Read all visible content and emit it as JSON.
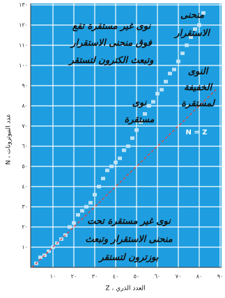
{
  "chart_data": {
    "type": "scatter",
    "x_label": "العدد الذري ، Z",
    "y_label": "عدد النيوترونات ، N",
    "xlim": [
      0,
      90
    ],
    "ylim": [
      0,
      130
    ],
    "xticks": [
      {
        "value": 10,
        "label": "١٠"
      },
      {
        "value": 20,
        "label": "٢٠"
      },
      {
        "value": 30,
        "label": "٣٠"
      },
      {
        "value": 40,
        "label": "٤٠"
      },
      {
        "value": 50,
        "label": "٥٠"
      },
      {
        "value": 60,
        "label": "٦٠"
      },
      {
        "value": 70,
        "label": "٧٠"
      },
      {
        "value": 80,
        "label": "٨٠"
      },
      {
        "value": 90,
        "label": "٩٠"
      }
    ],
    "yticks": [
      {
        "value": 10,
        "label": "١٠"
      },
      {
        "value": 20,
        "label": "٢٠"
      },
      {
        "value": 30,
        "label": "٣٠"
      },
      {
        "value": 40,
        "label": "٤٠"
      },
      {
        "value": 50,
        "label": "٥٠"
      },
      {
        "value": 60,
        "label": "٦٠"
      },
      {
        "value": 70,
        "label": "٧٠"
      },
      {
        "value": 80,
        "label": "٨٠"
      },
      {
        "value": 90,
        "label": "٩٠"
      },
      {
        "value": 100,
        "label": "١٠٠"
      },
      {
        "value": 110,
        "label": "١١٠"
      },
      {
        "value": 120,
        "label": "١٢٠"
      },
      {
        "value": 130,
        "label": "١٣٠"
      }
    ],
    "grid": true,
    "background": "#1e9ee0",
    "series": [
      {
        "color": "#cde9f8",
        "x": [
          2,
          4,
          6,
          8,
          10,
          12,
          14,
          16,
          18,
          20,
          22,
          24,
          26,
          28,
          30,
          32,
          34,
          36,
          38,
          40,
          42,
          44,
          46,
          48,
          50,
          52,
          54,
          56,
          58,
          60,
          62,
          64,
          66,
          68,
          70,
          72,
          74,
          76,
          78,
          80,
          82
        ],
        "values": [
          2,
          5,
          6,
          8,
          10,
          12,
          14,
          16,
          20,
          22,
          26,
          28,
          30,
          32,
          36,
          40,
          44,
          48,
          50,
          52,
          54,
          58,
          60,
          64,
          68,
          72,
          76,
          80,
          82,
          86,
          88,
          92,
          96,
          98,
          102,
          106,
          110,
          114,
          118,
          120,
          126
        ]
      }
    ],
    "annotations": [
      {
        "lines": [
          "نوى غير مستقرة تقع",
          "فوق منحنى الاستقرار",
          "وتبعث الكترون لتستقر"
        ]
      },
      {
        "lines": [
          "منحنى",
          "الاستقرار"
        ]
      },
      {
        "lines": [
          "النوى",
          "الخفيفة",
          "لمستقرة"
        ]
      },
      {
        "lines": [
          "نوى",
          "مستقرة"
        ]
      },
      {
        "lines": [
          "نوى غير مستقرة تحت",
          "منحنى الاستقرار وتبعث",
          "بوزترون لتستقر"
        ]
      },
      {
        "lines": [
          "N = Z"
        ]
      }
    ]
  }
}
